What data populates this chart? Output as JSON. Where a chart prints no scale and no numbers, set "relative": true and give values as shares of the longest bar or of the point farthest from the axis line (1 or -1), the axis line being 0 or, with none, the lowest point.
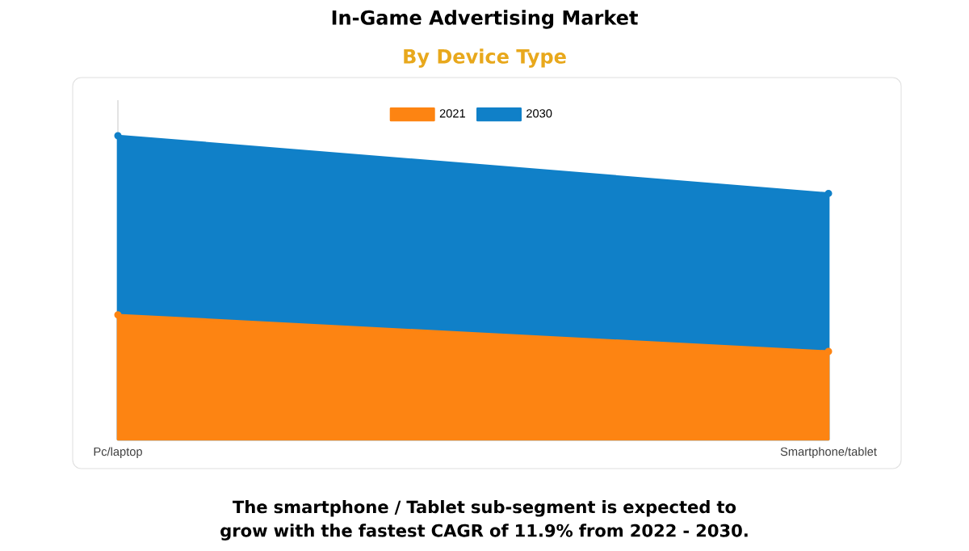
{
  "chart_data": {
    "type": "area",
    "title": "In-Game Advertising Market",
    "subtitle": "By Device Type",
    "categories": [
      "Pc/laptop",
      "Smartphone/tablet"
    ],
    "relative": true,
    "legend": "top",
    "marker": "circle",
    "series": [
      {
        "name": "2021",
        "color": "#fd8412",
        "values": [
          0.41,
          0.29
        ]
      },
      {
        "name": "2030",
        "color": "#1080c8",
        "values": [
          1,
          0.81
        ]
      }
    ],
    "annotations": [
      "The smartphone / Tablet sub-segment is expected to grow with the fastest CAGR of 11.9% from 2022 - 2030."
    ]
  }
}
